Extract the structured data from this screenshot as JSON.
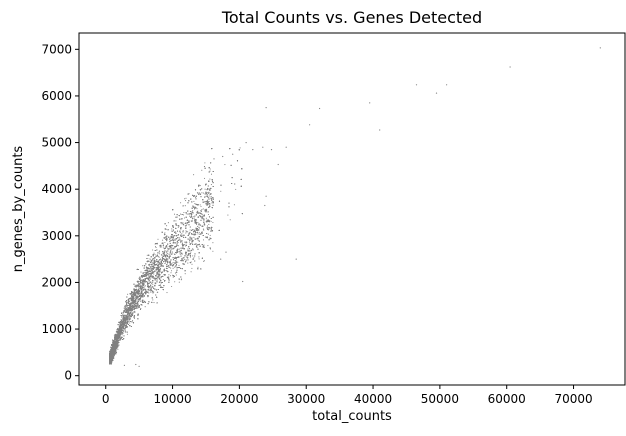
{
  "chart_data": {
    "type": "scatter",
    "title": "Total Counts vs. Genes Detected",
    "xlabel": "total_counts",
    "ylabel": "n_genes_by_counts",
    "xlim": [
      -4000,
      77700
    ],
    "ylim": [
      -200,
      7350
    ],
    "x_ticks": [
      0,
      10000,
      20000,
      30000,
      40000,
      50000,
      60000,
      70000
    ],
    "y_ticks": [
      0,
      1000,
      2000,
      3000,
      4000,
      5000,
      6000,
      7000
    ],
    "grid": false,
    "marker_color": "#808080",
    "series": [
      {
        "values_description_free": true,
        "points": [
          [
            74000,
            7030
          ],
          [
            60500,
            6620
          ],
          [
            51000,
            6240
          ],
          [
            46500,
            6240
          ],
          [
            49500,
            6060
          ],
          [
            39500,
            5850
          ],
          [
            32000,
            5730
          ],
          [
            24000,
            5750
          ],
          [
            30500,
            5380
          ],
          [
            41000,
            5270
          ],
          [
            21000,
            5000
          ],
          [
            22000,
            4850
          ],
          [
            23500,
            4900
          ],
          [
            24800,
            4850
          ],
          [
            27000,
            4900
          ],
          [
            25800,
            4530
          ],
          [
            17500,
            4700
          ],
          [
            19000,
            4750
          ],
          [
            16200,
            4650
          ],
          [
            24000,
            3850
          ],
          [
            23800,
            3650
          ],
          [
            28500,
            2500
          ],
          [
            20500,
            2020
          ],
          [
            18000,
            2650
          ],
          [
            17200,
            2500
          ],
          [
            4500,
            240
          ],
          [
            5000,
            200
          ],
          [
            2800,
            220
          ]
        ],
        "trend": [
          [
            600,
            340
          ],
          [
            1500,
            700
          ],
          [
            2500,
            1100
          ],
          [
            3500,
            1400
          ],
          [
            4500,
            1650
          ],
          [
            5500,
            1900
          ],
          [
            7000,
            2200
          ],
          [
            8500,
            2450
          ],
          [
            10000,
            2700
          ],
          [
            12000,
            3000
          ],
          [
            14000,
            3350
          ],
          [
            16000,
            3700
          ],
          [
            18000,
            4000
          ],
          [
            20000,
            4300
          ]
        ],
        "n_points": 12000
      }
    ]
  }
}
